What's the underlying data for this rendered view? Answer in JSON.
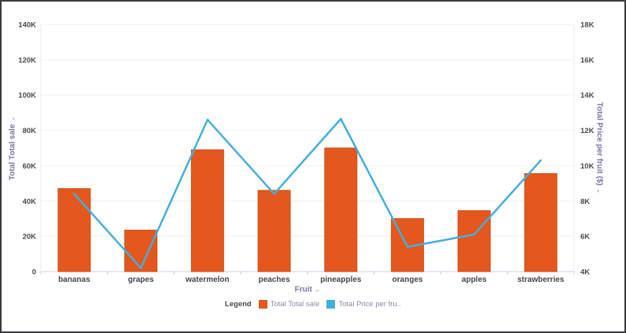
{
  "chart_data": {
    "type": "combo-bar-line",
    "categories": [
      "bananas",
      "grapes",
      "watermelon",
      "peaches",
      "pineapples",
      "oranges",
      "apples",
      "strawberries"
    ],
    "series": [
      {
        "name": "Total Total sale",
        "type": "bar",
        "axis": "left",
        "color": "#e4571e",
        "border_color": "#cf4e13",
        "values": [
          47000,
          23500,
          69000,
          46000,
          70000,
          30000,
          34500,
          55500
        ]
      },
      {
        "name": "Total Price per fruit ($)",
        "type": "line",
        "axis": "right",
        "color": "#45aedb",
        "values": [
          8400,
          4200,
          12600,
          8400,
          12650,
          5400,
          6100,
          10300
        ]
      }
    ],
    "x_axis": {
      "title": "Fruit"
    },
    "left_axis": {
      "title": "Total Total sale",
      "min": 0,
      "max": 140000,
      "tick_labels": [
        "0",
        "20K",
        "40K",
        "60K",
        "80K",
        "100K",
        "120K",
        "140K"
      ]
    },
    "right_axis": {
      "title": "Total Price per fruit ($)",
      "min": 4000,
      "max": 18000,
      "tick_labels": [
        "4K",
        "6K",
        "8K",
        "10K",
        "12K",
        "14K",
        "16K",
        "18K"
      ]
    },
    "grid": "horizontal-only",
    "legend_position": "bottom",
    "colors": {
      "gridline": "#f8edee",
      "axis_line": "#c9d3e2",
      "plot_edge": "#e7ebf3"
    }
  },
  "legend": {
    "label": "Legend",
    "items": [
      {
        "label": "Total Total sale",
        "color": "#e4571e"
      },
      {
        "label": "Total Price per fru..",
        "color": "#3fb0d8"
      }
    ]
  },
  "icons": {
    "chevron": "⌄"
  }
}
